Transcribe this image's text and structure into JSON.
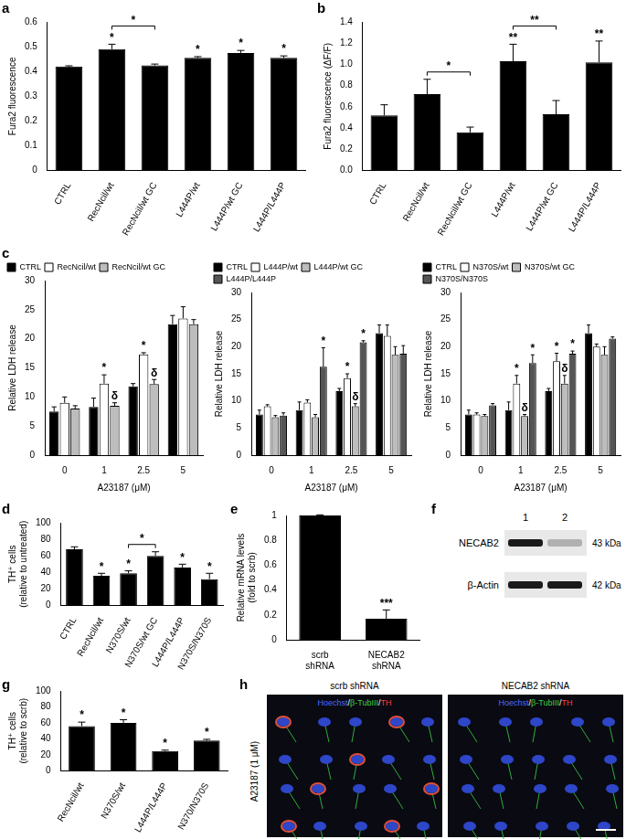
{
  "chart_data": [
    {
      "panel": "a",
      "type": "bar",
      "y_label": "Fura2 fluorescence",
      "categories": [
        "CTRL",
        "RecNcil/wt",
        "RecNcil/wt GC",
        "L444P/wt",
        "L444P/wt GC",
        "L444P/L444P"
      ],
      "values": [
        0.42,
        0.49,
        0.425,
        0.455,
        0.475,
        0.455
      ],
      "errors": [
        0.003,
        0.02,
        0.005,
        0.005,
        0.01,
        0.008
      ],
      "significance": [
        null,
        "*",
        null,
        "*",
        "*",
        "*"
      ],
      "brackets": [
        {
          "from": 1,
          "to": 2,
          "text": "*"
        }
      ],
      "color": "#000000",
      "ylim": [
        0,
        0.6
      ],
      "yticks": [
        0,
        0.1,
        0.2,
        0.3,
        0.4,
        0.5,
        0.6
      ],
      "grid": false
    },
    {
      "panel": "b",
      "type": "bar",
      "y_label": "Fura2 fluorescence (ΔF/F)",
      "categories": [
        "CTRL",
        "RecNcil/wt",
        "RecNcil/wt GC",
        "L444P/wt",
        "L444P/wt GC",
        "L444P/L444P"
      ],
      "values": [
        0.52,
        0.72,
        0.36,
        1.03,
        0.53,
        1.02
      ],
      "errors": [
        0.1,
        0.14,
        0.05,
        0.16,
        0.13,
        0.2
      ],
      "significance": [
        null,
        null,
        null,
        "**",
        null,
        "**"
      ],
      "brackets": [
        {
          "from": 1,
          "to": 2,
          "text": "*"
        },
        {
          "from": 3,
          "to": 4,
          "text": "**"
        }
      ],
      "color": "#000000",
      "ylim": [
        0,
        1.4
      ],
      "yticks": [
        {
          "value": 0,
          "label": "0.0"
        },
        0.2,
        0.4,
        0.6,
        0.8,
        {
          "value": 1,
          "label": "1.0"
        },
        1.2,
        1.4
      ],
      "grid": false
    },
    {
      "panel": "c",
      "type": "bar",
      "y_label": "Relative LDH release",
      "x_label": "A23187 (μM)",
      "categories": [
        "0",
        "1",
        "2.5",
        "5"
      ],
      "legend": "top-left",
      "series": [
        {
          "name": "CTRL",
          "color": "#000000",
          "values": [
            7.5,
            8.3,
            11.8,
            22.5
          ],
          "errors": [
            0.8,
            1.5,
            0.5,
            1.5
          ]
        },
        {
          "name": "RecNcil/wt",
          "color": "#ffffff",
          "values": [
            9,
            12.3,
            17.3,
            23.5
          ],
          "errors": [
            1,
            1.5,
            0.3,
            2
          ],
          "significance": [
            null,
            "*",
            "*",
            null
          ]
        },
        {
          "name": "RecNcil/wt GC",
          "color": "#bdbdbd",
          "values": [
            8,
            8.5,
            12.2,
            22.5
          ],
          "errors": [
            0.5,
            0.5,
            0.8,
            0.8
          ],
          "significance": [
            null,
            "δ",
            "δ",
            null
          ]
        }
      ],
      "ylim": [
        0,
        30
      ],
      "yticks": [
        0,
        5,
        10,
        15,
        20,
        25,
        30
      ],
      "grid": false
    },
    {
      "type": "bar",
      "y_label": "Relative LDH release",
      "x_label": "A23187 (μM)",
      "categories": [
        "0",
        "1",
        "2.5",
        "5"
      ],
      "legend": "top-left",
      "series": [
        {
          "name": "CTRL",
          "color": "#000000",
          "values": [
            7.5,
            8.3,
            11.8,
            22.5
          ],
          "errors": [
            0.8,
            1.5,
            0.5,
            1.5
          ]
        },
        {
          "name": "L444P/wt",
          "color": "#ffffff",
          "values": [
            9,
            9.7,
            14.2,
            22
          ],
          "errors": [
            0.3,
            0.5,
            0.8,
            2
          ],
          "significance": [
            null,
            null,
            "*",
            null
          ]
        },
        {
          "name": "L444P/wt GC",
          "color": "#bdbdbd",
          "values": [
            7,
            7,
            9,
            18.5
          ],
          "errors": [
            0.3,
            0.5,
            0.5,
            1.5
          ],
          "significance": [
            null,
            null,
            "δ",
            null
          ]
        },
        {
          "name": "L444P/L444P",
          "color": "#555555",
          "values": [
            7.3,
            16.3,
            20.8,
            18.7
          ],
          "errors": [
            0.5,
            3.5,
            0.3,
            1.5
          ],
          "significance": [
            null,
            "*",
            "*",
            null
          ]
        }
      ],
      "ylim": [
        0,
        30
      ],
      "yticks": [
        0,
        5,
        10,
        15,
        20,
        25,
        30
      ],
      "grid": false
    },
    {
      "type": "bar",
      "y_label": "Relative LDH release",
      "x_label": "A23187 (μM)",
      "categories": [
        "0",
        "1",
        "2.5",
        "5"
      ],
      "legend": "top-left",
      "series": [
        {
          "name": "CTRL",
          "color": "#000000",
          "values": [
            7.5,
            8.3,
            11.8,
            22.5
          ],
          "errors": [
            0.8,
            1.5,
            0.5,
            1.5
          ]
        },
        {
          "name": "N370S/wt",
          "color": "#ffffff",
          "values": [
            7.5,
            13.2,
            17.3,
            20
          ],
          "errors": [
            0.3,
            1.5,
            1.5,
            0.5
          ],
          "significance": [
            null,
            "*",
            "*",
            null
          ]
        },
        {
          "name": "N370S/wt GC",
          "color": "#bdbdbd",
          "values": [
            7.2,
            7.2,
            13.2,
            18.5
          ],
          "errors": [
            0.3,
            0.3,
            1.5,
            1.5
          ],
          "significance": [
            null,
            "δ",
            "δ",
            null
          ]
        },
        {
          "name": "N370S/N370S",
          "color": "#555555",
          "values": [
            9.2,
            17,
            18.7,
            21.5
          ],
          "errors": [
            0.3,
            1.5,
            0.5,
            0.3
          ],
          "significance": [
            null,
            "*",
            "*",
            null
          ]
        }
      ],
      "ylim": [
        0,
        30
      ],
      "yticks": [
        0,
        5,
        10,
        15,
        20,
        25,
        30
      ],
      "grid": false
    },
    {
      "panel": "d",
      "type": "bar",
      "y_label": [
        "TH⁺ cells",
        "(relative to untreated)"
      ],
      "categories": [
        "CTRL",
        "RecNcil/wt",
        "N370S/wt",
        "N370S/wt GC",
        "L444P/L444P",
        "N370S/N370S"
      ],
      "values": [
        68,
        36,
        39,
        60,
        46,
        32
      ],
      "errors": [
        3,
        3,
        3,
        5,
        4,
        7
      ],
      "significance": [
        null,
        "*",
        "*",
        null,
        "*",
        "*"
      ],
      "brackets": [
        {
          "from": 2,
          "to": 3,
          "text": "*"
        }
      ],
      "color": "#000000",
      "ylim": [
        0,
        100
      ],
      "yticks": [
        0,
        20,
        40,
        60,
        80,
        100
      ],
      "grid": false
    },
    {
      "panel": "e",
      "type": "bar",
      "y_label": [
        "Relative mRNA levels",
        "(fold to scrb)"
      ],
      "categories": [
        "scrb shRNA",
        "NECAB2 shRNA"
      ],
      "values": [
        1,
        0.17
      ],
      "errors": [
        0.005,
        0.07
      ],
      "significance": [
        null,
        "***"
      ],
      "color": "#000000",
      "ylim": [
        0,
        1
      ],
      "yticks": [
        0,
        0.2,
        0.4,
        0.6,
        0.8,
        1
      ],
      "grid": false
    },
    {
      "panel": "g",
      "type": "bar",
      "y_label": [
        "TH⁺ cells",
        "(relative to scrb)"
      ],
      "categories": [
        "RecNcil/wt",
        "N370S/wt",
        "L444P/L444P",
        "N370/N370S"
      ],
      "values": [
        56,
        60,
        25,
        38
      ],
      "errors": [
        5,
        4,
        1,
        1.5
      ],
      "significance": [
        "*",
        "*",
        "*",
        "*"
      ],
      "color": "#000000",
      "ylim": [
        0,
        100
      ],
      "yticks": [
        0,
        20,
        40,
        60,
        80,
        100
      ],
      "grid": false
    }
  ],
  "blot": {
    "panel": "f",
    "lanes": [
      "1",
      "2"
    ],
    "bands": [
      {
        "name": "NECAB2",
        "size": "43 kDa"
      },
      {
        "name": "β-Actin",
        "size": "42 kDa"
      }
    ]
  },
  "micrograph": {
    "panel": "h",
    "condition": "A23187 (1 μM)",
    "images": [
      "scrb shRNA",
      "NECAB2 shRNA"
    ],
    "stains": [
      {
        "text": "Hoechst",
        "color": "#4d6bff"
      },
      {
        "text": "/",
        "color": "#ffffff"
      },
      {
        "text": "β-TubIII",
        "color": "#3fd23f"
      },
      {
        "text": "/",
        "color": "#ffffff"
      },
      {
        "text": "TH",
        "color": "#ff4040"
      }
    ]
  }
}
